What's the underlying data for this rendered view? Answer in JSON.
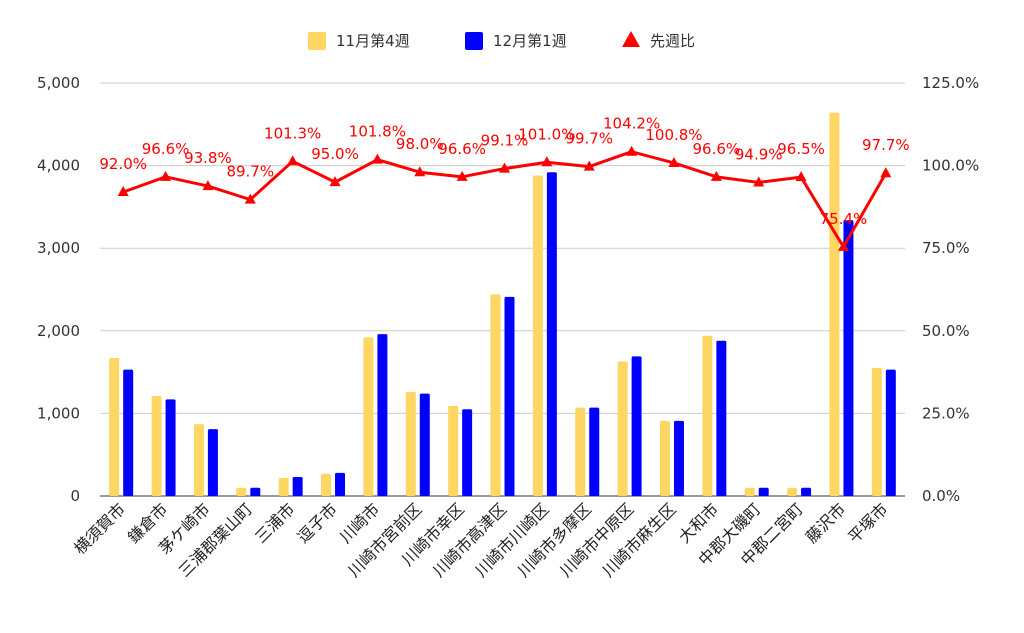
{
  "chart_data": {
    "type": "bar",
    "categories": [
      "横須賀市",
      "鎌倉市",
      "茅ケ崎市",
      "三浦郡葉山町",
      "三浦市",
      "逗子市",
      "川崎市",
      "川崎市宮前区",
      "川崎市幸区",
      "川崎市高津区",
      "川崎市川崎区",
      "川崎市多摩区",
      "川崎市中原区",
      "川崎市麻生区",
      "大和市",
      "中郡大磯町",
      "中郡二宮町",
      "藤沢市",
      "平塚市"
    ],
    "series": [
      {
        "name": "11月第4週",
        "type": "bar",
        "axis": "left",
        "color": "#fdd663",
        "values": [
          1670,
          1210,
          870,
          100,
          220,
          270,
          1920,
          1260,
          1090,
          2440,
          3880,
          1070,
          1630,
          910,
          1940,
          100,
          100,
          4640,
          1550
        ]
      },
      {
        "name": "12月第1週",
        "type": "bar",
        "axis": "left",
        "color": "#0000ff",
        "values": [
          1530,
          1170,
          810,
          100,
          230,
          280,
          1960,
          1240,
          1050,
          2410,
          3920,
          1070,
          1690,
          910,
          1880,
          100,
          100,
          3340,
          1530
        ]
      },
      {
        "name": "先週比",
        "type": "line",
        "axis": "right",
        "color": "#ff0000",
        "values": [
          92.0,
          96.6,
          93.8,
          89.7,
          101.3,
          95.0,
          101.8,
          98.0,
          96.6,
          99.1,
          101.0,
          99.7,
          104.2,
          100.8,
          96.6,
          94.9,
          96.5,
          75.4,
          97.7
        ],
        "labels": [
          "92.0%",
          "96.6%",
          "93.8%",
          "89.7%",
          "101.3%",
          "95.0%",
          "101.8%",
          "98.0%",
          "96.6%",
          "99.1%",
          "101.0%",
          "99.7%",
          "104.2%",
          "100.8%",
          "96.6%",
          "94.9%",
          "96.5%",
          "75.4%",
          "97.7%"
        ]
      }
    ],
    "y_left": {
      "min": 0,
      "max": 5000,
      "ticks": [
        "0",
        "1,000",
        "2,000",
        "3,000",
        "4,000",
        "5,000"
      ]
    },
    "y_right": {
      "min": 0,
      "max": 125,
      "ticks": [
        "0.0%",
        "25.0%",
        "50.0%",
        "75.0%",
        "100.0%",
        "125.0%"
      ]
    },
    "grid": true,
    "legend_position": "top"
  }
}
